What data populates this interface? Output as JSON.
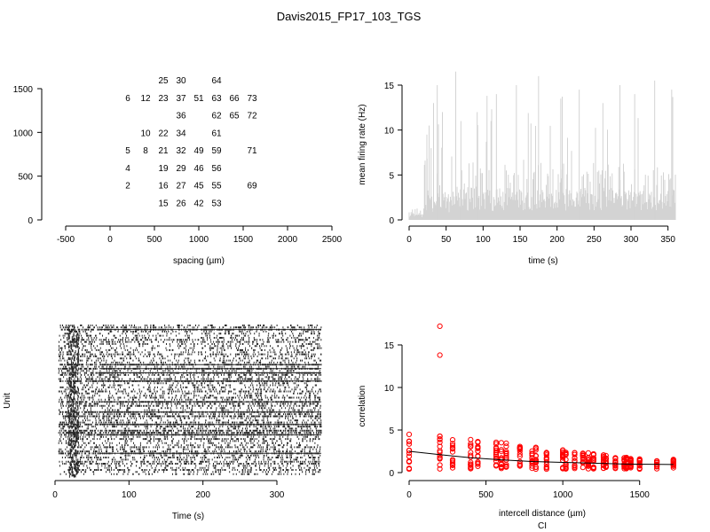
{
  "figure": {
    "title": "Davis2015_FP17_103_TGS"
  },
  "chart_data": [
    {
      "id": "layout",
      "type": "scatter",
      "xlabel": "spacing (µm)",
      "ylabel": "",
      "xlim": [
        -500,
        2500
      ],
      "ylim": [
        0,
        1500
      ],
      "xticks": [
        "-500",
        "0",
        "500",
        "1000",
        "1500",
        "2000",
        "2500"
      ],
      "yticks": [
        "0",
        "500",
        "1000",
        "1500"
      ],
      "grid": false,
      "points": [
        {
          "label": "25",
          "x": 600,
          "y": 1600
        },
        {
          "label": "30",
          "x": 800,
          "y": 1600
        },
        {
          "label": "64",
          "x": 1200,
          "y": 1600
        },
        {
          "label": "6",
          "x": 200,
          "y": 1400
        },
        {
          "label": "12",
          "x": 400,
          "y": 1400
        },
        {
          "label": "23",
          "x": 600,
          "y": 1400
        },
        {
          "label": "37",
          "x": 800,
          "y": 1400
        },
        {
          "label": "51",
          "x": 1000,
          "y": 1400
        },
        {
          "label": "63",
          "x": 1200,
          "y": 1400
        },
        {
          "label": "66",
          "x": 1400,
          "y": 1400
        },
        {
          "label": "73",
          "x": 1600,
          "y": 1400
        },
        {
          "label": "36",
          "x": 800,
          "y": 1200
        },
        {
          "label": "62",
          "x": 1200,
          "y": 1200
        },
        {
          "label": "65",
          "x": 1400,
          "y": 1200
        },
        {
          "label": "72",
          "x": 1600,
          "y": 1200
        },
        {
          "label": "10",
          "x": 400,
          "y": 1000
        },
        {
          "label": "22",
          "x": 600,
          "y": 1000
        },
        {
          "label": "34",
          "x": 800,
          "y": 1000
        },
        {
          "label": "61",
          "x": 1200,
          "y": 1000
        },
        {
          "label": "5",
          "x": 200,
          "y": 800
        },
        {
          "label": "8",
          "x": 400,
          "y": 800
        },
        {
          "label": "21",
          "x": 600,
          "y": 800
        },
        {
          "label": "32",
          "x": 800,
          "y": 800
        },
        {
          "label": "49",
          "x": 1000,
          "y": 800
        },
        {
          "label": "59",
          "x": 1200,
          "y": 800
        },
        {
          "label": "71",
          "x": 1600,
          "y": 800
        },
        {
          "label": "4",
          "x": 200,
          "y": 600
        },
        {
          "label": "19",
          "x": 600,
          "y": 600
        },
        {
          "label": "29",
          "x": 800,
          "y": 600
        },
        {
          "label": "46",
          "x": 1000,
          "y": 600
        },
        {
          "label": "56",
          "x": 1200,
          "y": 600
        },
        {
          "label": "2",
          "x": 200,
          "y": 400
        },
        {
          "label": "16",
          "x": 600,
          "y": 400
        },
        {
          "label": "27",
          "x": 800,
          "y": 400
        },
        {
          "label": "45",
          "x": 1000,
          "y": 400
        },
        {
          "label": "55",
          "x": 1200,
          "y": 400
        },
        {
          "label": "69",
          "x": 1600,
          "y": 400
        },
        {
          "label": "15",
          "x": 600,
          "y": 200
        },
        {
          "label": "26",
          "x": 800,
          "y": 200
        },
        {
          "label": "42",
          "x": 1000,
          "y": 200
        },
        {
          "label": "53",
          "x": 1200,
          "y": 200
        }
      ]
    },
    {
      "id": "rate",
      "type": "bar",
      "xlabel": "time (s)",
      "ylabel": "mean firing rate (Hz)",
      "xlim": [
        0,
        360
      ],
      "ylim": [
        0,
        16
      ],
      "xticks": [
        "0",
        "50",
        "100",
        "150",
        "200",
        "250",
        "300",
        "350"
      ],
      "yticks": [
        "0",
        "5",
        "10",
        "15"
      ],
      "grid": false,
      "color": "#d3d3d3",
      "segments": [
        {
          "x0": 0,
          "x1": 20,
          "low": 0.3,
          "high": 1.2
        },
        {
          "x0": 20,
          "x1": 30,
          "low": 1.0,
          "high": 8.0
        },
        {
          "x0": 30,
          "x1": 60,
          "low": 0.8,
          "high": 13.5
        },
        {
          "x0": 60,
          "x1": 360,
          "low": 1.0,
          "high": 15.5
        }
      ],
      "peaks": [
        [
          24,
          9.5
        ],
        [
          27,
          10.5
        ],
        [
          33,
          13.0
        ],
        [
          38,
          15.0
        ],
        [
          45,
          12.0
        ],
        [
          63,
          16.5
        ],
        [
          70,
          11.0
        ],
        [
          92,
          12.0
        ],
        [
          118,
          14.0
        ],
        [
          145,
          15.0
        ],
        [
          175,
          16.0
        ],
        [
          205,
          13.5
        ],
        [
          230,
          14.5
        ],
        [
          262,
          13.0
        ],
        [
          285,
          15.0
        ],
        [
          305,
          14.0
        ],
        [
          332,
          15.5
        ],
        [
          355,
          14.5
        ]
      ]
    },
    {
      "id": "raster",
      "type": "scatter",
      "xlabel": "Time (s)",
      "ylabel": "Unit",
      "xlim": [
        0,
        360
      ],
      "xticks": [
        "0",
        "100",
        "200",
        "300"
      ],
      "grid": false,
      "color": "#000000",
      "units": 73,
      "activity_start": 5
    },
    {
      "id": "correlation",
      "type": "scatter",
      "xlabel": "intercell distance (µm)",
      "ylabel": "correlation",
      "xlim": [
        0,
        1750
      ],
      "ylim": [
        0,
        17
      ],
      "xticks": [
        "0",
        "500",
        "1000",
        "1500"
      ],
      "yticks": [
        "0",
        "5",
        "10",
        "15"
      ],
      "grid": false,
      "point_color": "#ff0000",
      "fit_color": "#000000",
      "distances": [
        0,
        200,
        283,
        400,
        447,
        566,
        600,
        632,
        721,
        800,
        825,
        894,
        1000,
        1020,
        1077,
        1131,
        1166,
        1200,
        1265,
        1281,
        1342,
        1400,
        1414,
        1442,
        1500,
        1612,
        1720
      ],
      "outliers": [
        [
          200,
          17.2
        ],
        [
          200,
          13.8
        ]
      ],
      "fit": [
        [
          0,
          2.5
        ],
        [
          200,
          2.1
        ],
        [
          400,
          1.75
        ],
        [
          600,
          1.5
        ],
        [
          800,
          1.3
        ],
        [
          1000,
          1.2
        ],
        [
          1200,
          1.1
        ],
        [
          1400,
          1.0
        ],
        [
          1720,
          0.95
        ]
      ]
    }
  ],
  "footer": {
    "label": "CI"
  }
}
